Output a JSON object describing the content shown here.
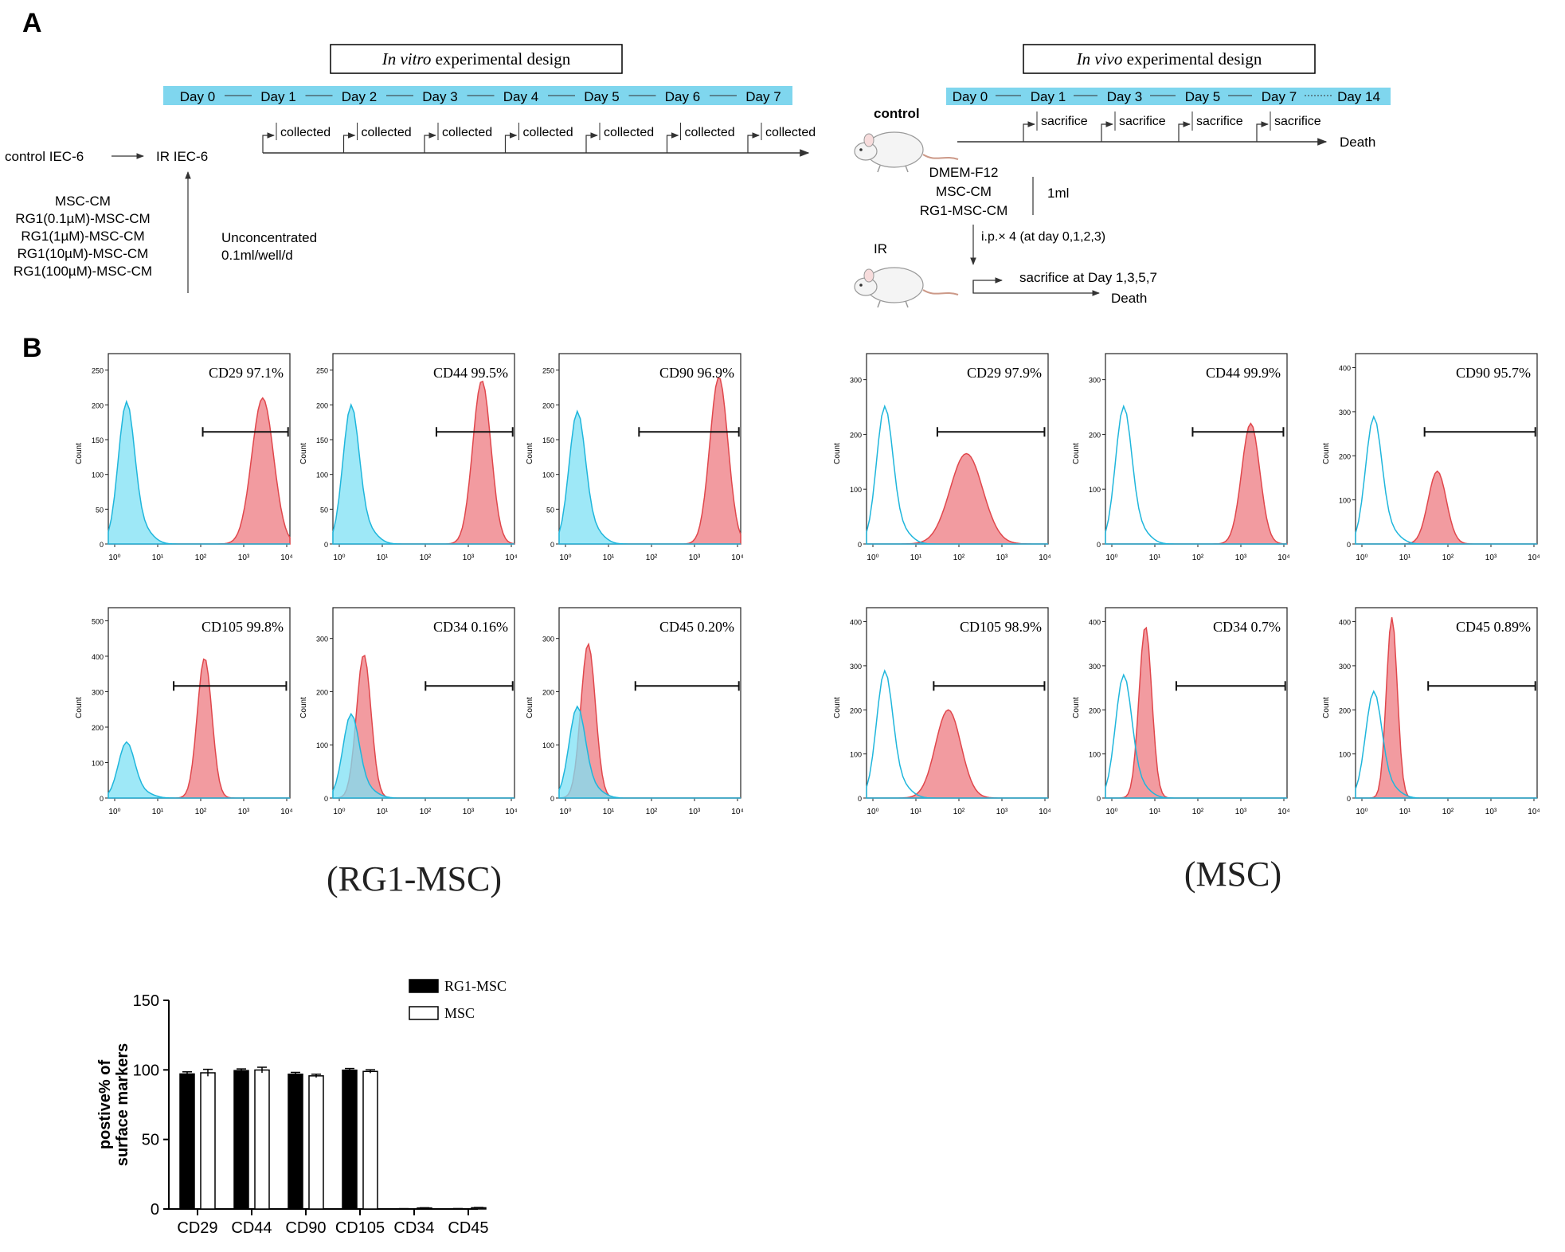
{
  "panel_labels": [
    "A",
    "B"
  ],
  "in_vitro": {
    "title_italic": "In vitro",
    "title_rest": " experimental design",
    "days": [
      "Day 0",
      "Day 1",
      "Day 2",
      "Day 3",
      "Day 4",
      "Day 5",
      "Day 6",
      "Day 7"
    ],
    "collected_label": "collected",
    "control_label": "control IEC-6",
    "ir_label": "IR IEC-6",
    "treatments": [
      "MSC-CM",
      "RG1(0.1µM)-MSC-CM",
      "RG1(1µM)-MSC-CM",
      "RG1(10µM)-MSC-CM",
      "RG1(100µM)-MSC-CM"
    ],
    "dose_lines": [
      "Unconcentrated",
      "0.1ml/well/d"
    ]
  },
  "in_vivo": {
    "title_italic": "In vivo",
    "title_rest": " experimental design",
    "days": [
      "Day 0",
      "Day 1",
      "Day 3",
      "Day 5",
      "Day 7",
      "Day 14"
    ],
    "sacrifice_label": "sacrifice",
    "control_label": "control",
    "death_label": "Death",
    "treatments": [
      "DMEM-F12",
      "MSC-CM",
      "RG1-MSC-CM"
    ],
    "volume_label": "1ml",
    "injection_label": "i.p.× 4 (at day 0,1,2,3)",
    "ir_label": "IR",
    "ir_sacrifice_label": "sacrifice at Day 1,3,5,7",
    "ir_death_label": "Death",
    "colors": {
      "timeline": "#7fd6ee"
    }
  },
  "flow": {
    "y_axis_title": "Count",
    "x_ticks": [
      "10⁰",
      "10¹",
      "10²",
      "10³",
      "10⁴"
    ],
    "colors": {
      "control": "#1fb6dc",
      "control_fill": "#7ee0f4",
      "marker": "#e0474c",
      "marker_fill": "#f08a8f"
    },
    "group_labels": [
      "(RG1-MSC)",
      "(MSC)"
    ],
    "plots": [
      {
        "group": "RG1-MSC",
        "label": "CD29 97.1%",
        "yticks": [
          "0",
          "50",
          "100",
          "150",
          "200",
          "250"
        ],
        "ymax": 260,
        "filled_control": true,
        "blue_peak": 220,
        "red_peak": 210
      },
      {
        "group": "RG1-MSC",
        "label": "CD44 99.5%",
        "yticks": [
          "0",
          "50",
          "100",
          "150",
          "200",
          "250"
        ],
        "ymax": 260,
        "filled_control": true,
        "blue_peak": 215,
        "red_peak": 235
      },
      {
        "group": "RG1-MSC",
        "label": "CD90 96.9%",
        "yticks": [
          "0",
          "50",
          "100",
          "150",
          "200",
          "250"
        ],
        "ymax": 260,
        "filled_control": true,
        "blue_peak": 205,
        "red_peak": 240
      },
      {
        "group": "RG1-MSC",
        "label": "CD105 99.8%",
        "yticks": [
          "0",
          "100",
          "200",
          "300",
          "400",
          "500"
        ],
        "ymax": 510,
        "filled_control": true,
        "blue_peak": 170,
        "red_peak": 395
      },
      {
        "group": "RG1-MSC",
        "label": "CD34 0.16%",
        "yticks": [
          "0",
          "100",
          "200",
          "300"
        ],
        "ymax": 340,
        "filled_control": true,
        "blue_peak": 170,
        "red_peak": 270
      },
      {
        "group": "RG1-MSC",
        "label": "CD45 0.20%",
        "yticks": [
          "0",
          "100",
          "200",
          "300"
        ],
        "ymax": 340,
        "filled_control": true,
        "blue_peak": 185,
        "red_peak": 290
      },
      {
        "group": "MSC",
        "label": "CD29 97.9%",
        "yticks": [
          "0",
          "100",
          "200",
          "300"
        ],
        "ymax": 330,
        "filled_control": false,
        "blue_peak": 270,
        "red_peak": 165
      },
      {
        "group": "MSC",
        "label": "CD44 99.9%",
        "yticks": [
          "0",
          "100",
          "200",
          "300"
        ],
        "ymax": 330,
        "filled_control": false,
        "blue_peak": 270,
        "red_peak": 220
      },
      {
        "group": "MSC",
        "label": "CD90 95.7%",
        "yticks": [
          "0",
          "100",
          "200",
          "300",
          "400"
        ],
        "ymax": 410,
        "filled_control": false,
        "blue_peak": 310,
        "red_peak": 165
      },
      {
        "group": "MSC",
        "label": "CD105 98.9%",
        "yticks": [
          "0",
          "100",
          "200",
          "300",
          "400"
        ],
        "ymax": 410,
        "filled_control": false,
        "blue_peak": 310,
        "red_peak": 200
      },
      {
        "group": "MSC",
        "label": "CD34 0.7%",
        "yticks": [
          "0",
          "100",
          "200",
          "300",
          "400"
        ],
        "ymax": 410,
        "filled_control": false,
        "blue_peak": 300,
        "red_peak": 390
      },
      {
        "group": "MSC",
        "label": "CD45 0.89%",
        "yticks": [
          "0",
          "100",
          "200",
          "300",
          "400"
        ],
        "ymax": 410,
        "filled_control": false,
        "blue_peak": 260,
        "red_peak": 410
      }
    ]
  },
  "chart_data": {
    "type": "bar",
    "categories": [
      "CD29",
      "CD44",
      "CD90",
      "CD105",
      "CD34",
      "CD45"
    ],
    "series": [
      {
        "name": "RG1-MSC",
        "values": [
          97.1,
          99.5,
          96.9,
          99.8,
          0.16,
          0.2
        ],
        "errors": [
          1.5,
          1.2,
          1.3,
          1.2,
          0.1,
          0.1
        ],
        "color": "#000000"
      },
      {
        "name": "MSC",
        "values": [
          97.9,
          99.9,
          95.7,
          98.9,
          0.7,
          0.89
        ],
        "errors": [
          2.5,
          2.0,
          1.2,
          1.2,
          0.2,
          0.2
        ],
        "color": "#ffffff"
      }
    ],
    "ylabel": "postive% of surface markers",
    "ylim": [
      0,
      150
    ],
    "yticks": [
      "0",
      "50",
      "100",
      "150"
    ],
    "legend": "top-right"
  }
}
